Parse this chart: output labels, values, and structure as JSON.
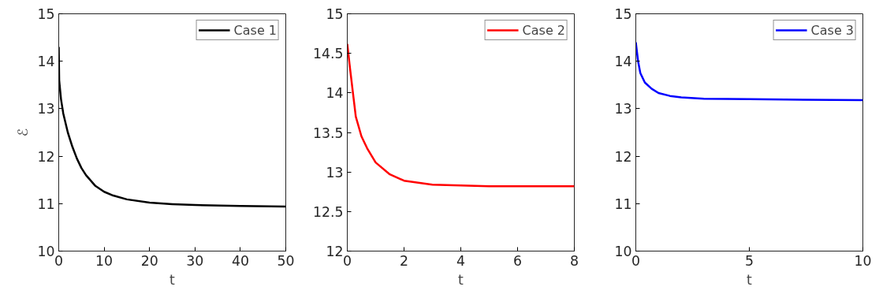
{
  "chart_data": [
    {
      "type": "line",
      "xlabel": "t",
      "ylabel": "ℰ",
      "xlim": [
        0,
        50
      ],
      "ylim": [
        10,
        15
      ],
      "xticks": [
        0,
        10,
        20,
        30,
        40,
        50
      ],
      "yticks": [
        10,
        11,
        12,
        13,
        14,
        15
      ],
      "grid": false,
      "legend": "top right",
      "series": [
        {
          "name": "Case 1",
          "color": "#000000",
          "x": [
            0,
            0.1,
            0.5,
            1,
            2,
            3,
            4,
            5,
            6,
            8,
            10,
            12,
            15,
            20,
            25,
            30,
            40,
            50
          ],
          "values": [
            14.3,
            13.6,
            13.2,
            12.9,
            12.5,
            12.2,
            11.95,
            11.75,
            11.6,
            11.38,
            11.25,
            11.17,
            11.09,
            11.02,
            10.99,
            10.97,
            10.95,
            10.94
          ]
        }
      ]
    },
    {
      "type": "line",
      "xlabel": "t",
      "xlim": [
        0,
        8
      ],
      "ylim": [
        12,
        15
      ],
      "xticks": [
        0,
        2,
        4,
        6,
        8
      ],
      "yticks": [
        12,
        12.5,
        13,
        13.5,
        14,
        14.5,
        15
      ],
      "grid": false,
      "legend": "top right",
      "series": [
        {
          "name": "Case 2",
          "color": "#ff0000",
          "x": [
            0,
            0.1,
            0.2,
            0.3,
            0.5,
            0.7,
            1,
            1.5,
            2,
            3,
            4,
            5,
            8
          ],
          "values": [
            14.62,
            14.3,
            14.0,
            13.7,
            13.45,
            13.3,
            13.12,
            12.97,
            12.89,
            12.84,
            12.83,
            12.82,
            12.82
          ]
        }
      ]
    },
    {
      "type": "line",
      "xlabel": "t",
      "xlim": [
        0,
        10
      ],
      "ylim": [
        10,
        15
      ],
      "xticks": [
        0,
        5,
        10
      ],
      "yticks": [
        10,
        11,
        12,
        13,
        14,
        15
      ],
      "grid": false,
      "legend": "top right",
      "series": [
        {
          "name": "Case 3",
          "color": "#0000ff",
          "x": [
            0,
            0.1,
            0.2,
            0.4,
            0.7,
            1,
            1.5,
            2,
            3,
            5,
            10
          ],
          "values": [
            14.4,
            14.0,
            13.75,
            13.55,
            13.42,
            13.33,
            13.27,
            13.24,
            13.21,
            13.2,
            13.18
          ]
        }
      ]
    }
  ]
}
